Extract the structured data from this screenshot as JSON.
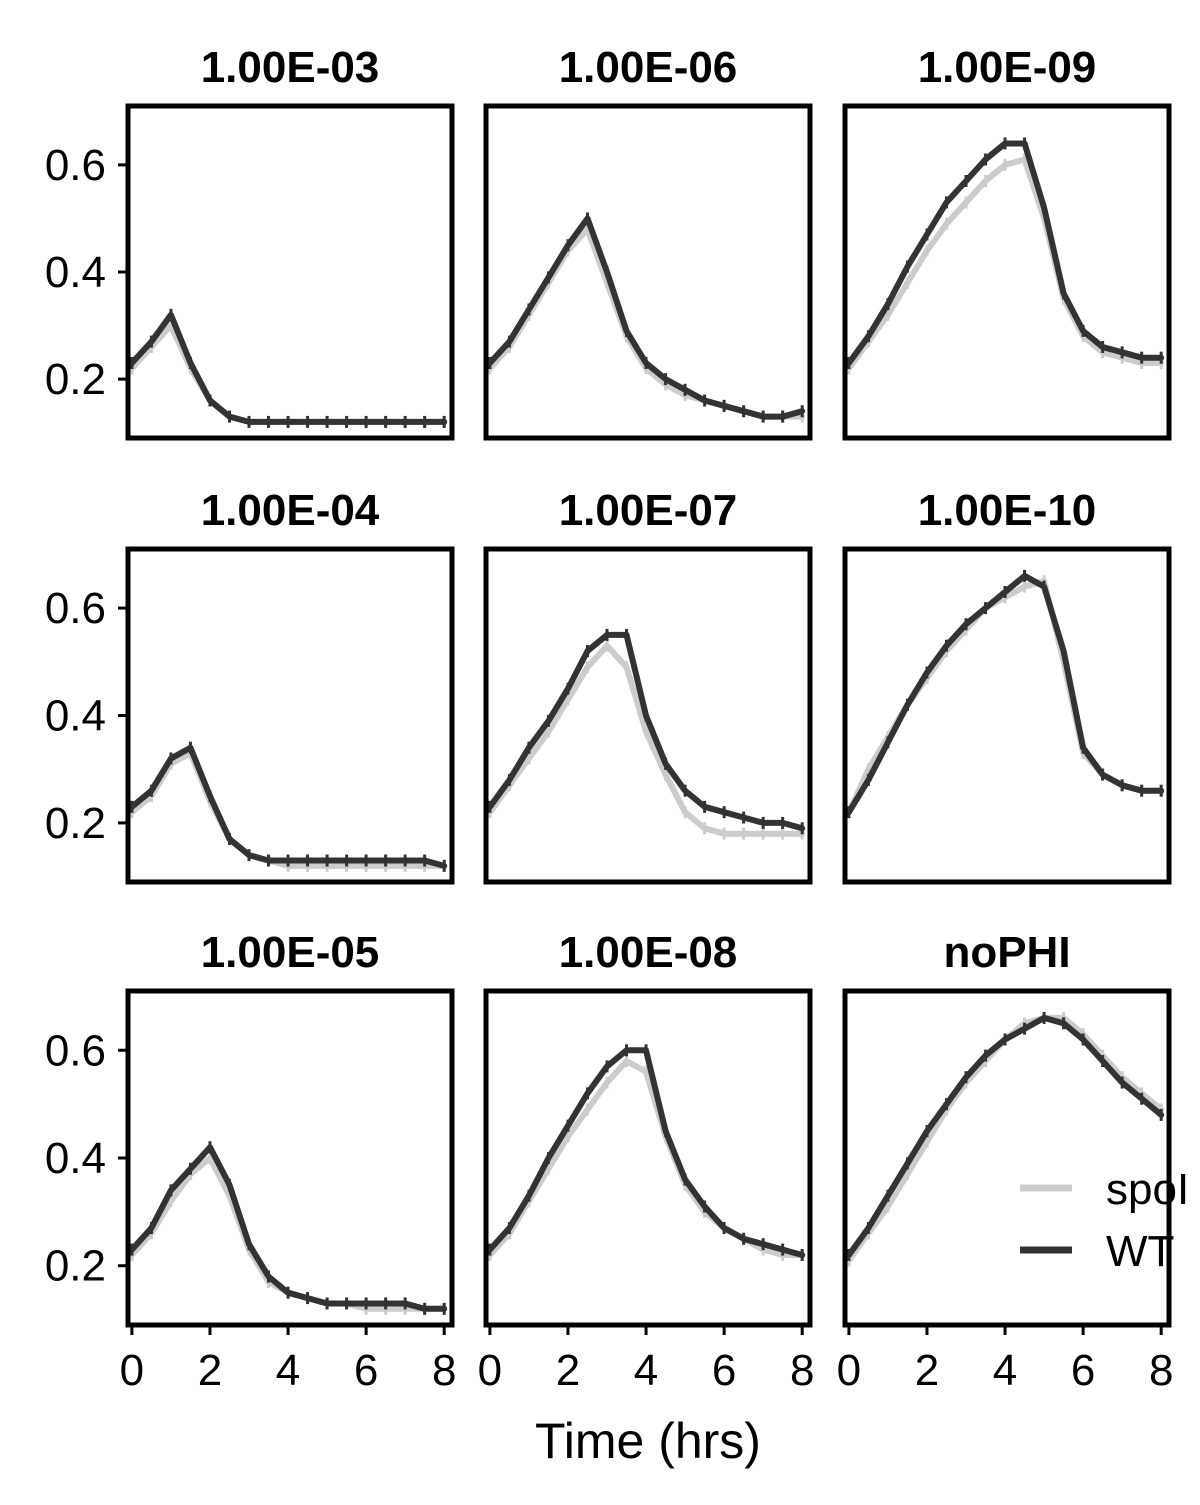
{
  "chart_data": {
    "type": "line",
    "layout": "3x3 facet grid, shared axes, column-major panel order",
    "xlabel": "Time (hrs)",
    "ylabel": "",
    "xlim": [
      -0.1,
      8.2
    ],
    "ylim": [
      0.09,
      0.71
    ],
    "x_ticks": [
      0,
      2,
      4,
      6,
      8
    ],
    "y_ticks": [
      0.2,
      0.4,
      0.6
    ],
    "x_tick_labels": [
      "0",
      "2",
      "4",
      "6",
      "8"
    ],
    "y_tick_labels": [
      "0.2",
      "0.4",
      "0.6"
    ],
    "grid": false,
    "legend": {
      "placement": "right",
      "entries": [
        {
          "label": "spoI",
          "color": "#cccccc"
        },
        {
          "label": "WT",
          "color": "#333333"
        }
      ]
    },
    "x": [
      0,
      0.5,
      1,
      1.5,
      2,
      2.5,
      3,
      3.5,
      4,
      4.5,
      5,
      5.5,
      6,
      6.5,
      7,
      7.5,
      8
    ],
    "panels": [
      {
        "title": "1.00E-03",
        "series": [
          {
            "name": "spoI",
            "values": [
              0.22,
              0.26,
              0.3,
              0.22,
              0.16,
              0.13,
              0.12,
              0.12,
              0.12,
              0.12,
              0.12,
              0.12,
              0.12,
              0.12,
              0.12,
              0.12,
              0.12
            ]
          },
          {
            "name": "WT",
            "values": [
              0.23,
              0.27,
              0.32,
              0.23,
              0.16,
              0.13,
              0.12,
              0.12,
              0.12,
              0.12,
              0.12,
              0.12,
              0.12,
              0.12,
              0.12,
              0.12,
              0.12
            ]
          }
        ]
      },
      {
        "title": "1.00E-04",
        "series": [
          {
            "name": "spoI",
            "values": [
              0.22,
              0.25,
              0.31,
              0.33,
              0.24,
              0.17,
              0.14,
              0.13,
              0.12,
              0.12,
              0.12,
              0.12,
              0.12,
              0.12,
              0.12,
              0.12,
              0.12
            ]
          },
          {
            "name": "WT",
            "values": [
              0.23,
              0.26,
              0.32,
              0.34,
              0.25,
              0.17,
              0.14,
              0.13,
              0.13,
              0.13,
              0.13,
              0.13,
              0.13,
              0.13,
              0.13,
              0.13,
              0.12
            ]
          }
        ]
      },
      {
        "title": "1.00E-05",
        "series": [
          {
            "name": "spoI",
            "values": [
              0.22,
              0.26,
              0.32,
              0.37,
              0.4,
              0.33,
              0.23,
              0.17,
              0.15,
              0.14,
              0.13,
              0.13,
              0.12,
              0.12,
              0.12,
              0.12,
              0.12
            ]
          },
          {
            "name": "WT",
            "values": [
              0.23,
              0.27,
              0.34,
              0.38,
              0.42,
              0.35,
              0.24,
              0.18,
              0.15,
              0.14,
              0.13,
              0.13,
              0.13,
              0.13,
              0.13,
              0.12,
              0.12
            ]
          }
        ]
      },
      {
        "title": "1.00E-06",
        "series": [
          {
            "name": "spoI",
            "values": [
              0.22,
              0.26,
              0.32,
              0.38,
              0.44,
              0.48,
              0.38,
              0.28,
              0.22,
              0.19,
              0.17,
              0.16,
              0.15,
              0.14,
              0.13,
              0.13,
              0.13
            ]
          },
          {
            "name": "WT",
            "values": [
              0.23,
              0.27,
              0.33,
              0.39,
              0.45,
              0.5,
              0.4,
              0.29,
              0.23,
              0.2,
              0.18,
              0.16,
              0.15,
              0.14,
              0.13,
              0.13,
              0.14
            ]
          }
        ]
      },
      {
        "title": "1.00E-07",
        "series": [
          {
            "name": "spoI",
            "values": [
              0.22,
              0.27,
              0.32,
              0.37,
              0.43,
              0.49,
              0.53,
              0.49,
              0.37,
              0.29,
              0.22,
              0.19,
              0.18,
              0.18,
              0.18,
              0.18,
              0.18
            ]
          },
          {
            "name": "WT",
            "values": [
              0.23,
              0.28,
              0.34,
              0.39,
              0.45,
              0.52,
              0.55,
              0.55,
              0.4,
              0.31,
              0.26,
              0.23,
              0.22,
              0.21,
              0.2,
              0.2,
              0.19
            ]
          }
        ]
      },
      {
        "title": "1.00E-08",
        "series": [
          {
            "name": "spoI",
            "values": [
              0.22,
              0.26,
              0.32,
              0.38,
              0.44,
              0.49,
              0.54,
              0.58,
              0.56,
              0.44,
              0.35,
              0.3,
              0.27,
              0.25,
              0.23,
              0.22,
              0.22
            ]
          },
          {
            "name": "WT",
            "values": [
              0.23,
              0.27,
              0.33,
              0.4,
              0.46,
              0.52,
              0.57,
              0.6,
              0.6,
              0.45,
              0.36,
              0.31,
              0.27,
              0.25,
              0.24,
              0.23,
              0.22
            ]
          }
        ]
      },
      {
        "title": "1.00E-09",
        "series": [
          {
            "name": "spoI",
            "values": [
              0.22,
              0.27,
              0.32,
              0.38,
              0.44,
              0.49,
              0.53,
              0.57,
              0.6,
              0.61,
              0.5,
              0.35,
              0.28,
              0.25,
              0.24,
              0.23,
              0.23
            ]
          },
          {
            "name": "WT",
            "values": [
              0.23,
              0.28,
              0.34,
              0.41,
              0.47,
              0.53,
              0.57,
              0.61,
              0.64,
              0.64,
              0.52,
              0.36,
              0.29,
              0.26,
              0.25,
              0.24,
              0.24
            ]
          }
        ]
      },
      {
        "title": "1.00E-10",
        "series": [
          {
            "name": "spoI",
            "values": [
              0.22,
              0.3,
              0.36,
              0.42,
              0.47,
              0.52,
              0.56,
              0.6,
              0.62,
              0.64,
              0.65,
              0.5,
              0.33,
              0.29,
              0.27,
              0.26,
              0.26
            ]
          },
          {
            "name": "WT",
            "values": [
              0.22,
              0.28,
              0.35,
              0.42,
              0.48,
              0.53,
              0.57,
              0.6,
              0.63,
              0.66,
              0.64,
              0.52,
              0.34,
              0.29,
              0.27,
              0.26,
              0.26
            ]
          }
        ]
      },
      {
        "title": "noPHI",
        "series": [
          {
            "name": "spoI",
            "values": [
              0.21,
              0.26,
              0.31,
              0.37,
              0.43,
              0.49,
              0.54,
              0.58,
              0.62,
              0.65,
              0.66,
              0.66,
              0.63,
              0.59,
              0.55,
              0.52,
              0.49
            ]
          },
          {
            "name": "WT",
            "values": [
              0.22,
              0.27,
              0.33,
              0.39,
              0.45,
              0.5,
              0.55,
              0.59,
              0.62,
              0.64,
              0.66,
              0.65,
              0.62,
              0.58,
              0.54,
              0.51,
              0.48
            ]
          }
        ]
      }
    ]
  }
}
